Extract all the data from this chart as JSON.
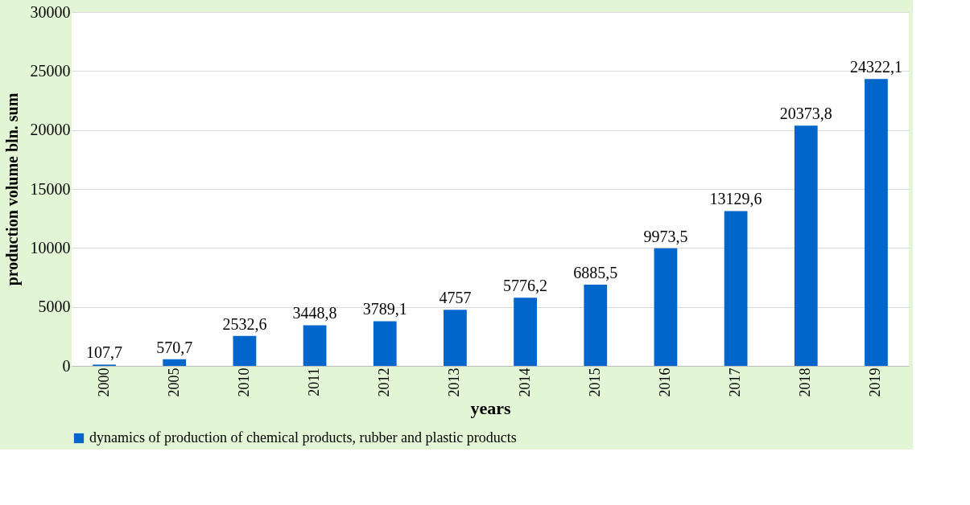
{
  "chart_data": {
    "type": "bar",
    "xlabel": "years",
    "ylabel": "production volume bln. sum",
    "categories": [
      "2000",
      "2005",
      "2010",
      "2011",
      "2012",
      "2013",
      "2014",
      "2015",
      "2016",
      "2017",
      "2018",
      "2019"
    ],
    "series": [
      {
        "name": "dynamics of production of chemical products, rubber and plastic products",
        "color": "#0066cc",
        "values": [
          107.7,
          570.7,
          2532.6,
          3448.8,
          3789.1,
          4757,
          5776.2,
          6885.5,
          9973.5,
          13129.6,
          20373.8,
          24322.1
        ],
        "value_labels": [
          "107,7",
          "570,7",
          "2532,6",
          "3448,8",
          "3789,1",
          "4757",
          "5776,2",
          "6885,5",
          "9973,5",
          "13129,6",
          "20373,8",
          "24322,1"
        ]
      }
    ],
    "ylim": [
      0,
      30000
    ],
    "yticks": [
      0,
      5000,
      10000,
      15000,
      20000,
      25000,
      30000
    ],
    "grid": "y",
    "legend": "bottom"
  }
}
